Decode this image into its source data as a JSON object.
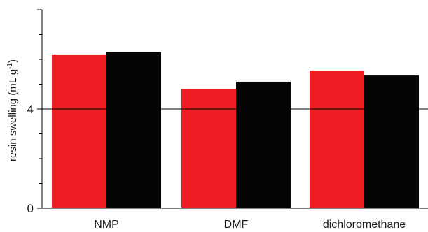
{
  "chart_data": {
    "type": "bar",
    "title": "",
    "xlabel": "",
    "ylabel": "resin swelling (mL g",
    "ylabel_superscript": "-1",
    "ylabel_close": ")",
    "categories": [
      "NMP",
      "DMF",
      "dichloromethane"
    ],
    "series": [
      {
        "values": [
          6.2,
          4.8,
          5.55
        ],
        "color": "#ee1c25"
      },
      {
        "values": [
          6.3,
          5.1,
          5.35
        ],
        "color": "#050505"
      }
    ],
    "ylim": [
      0,
      8
    ],
    "yticks": [
      0,
      4
    ],
    "ytick_labels": [
      "0",
      "4"
    ],
    "minor_ticks": [
      1,
      2,
      3,
      5,
      6,
      7
    ],
    "reference_line_y": 4,
    "grid": false,
    "legend": "none"
  }
}
